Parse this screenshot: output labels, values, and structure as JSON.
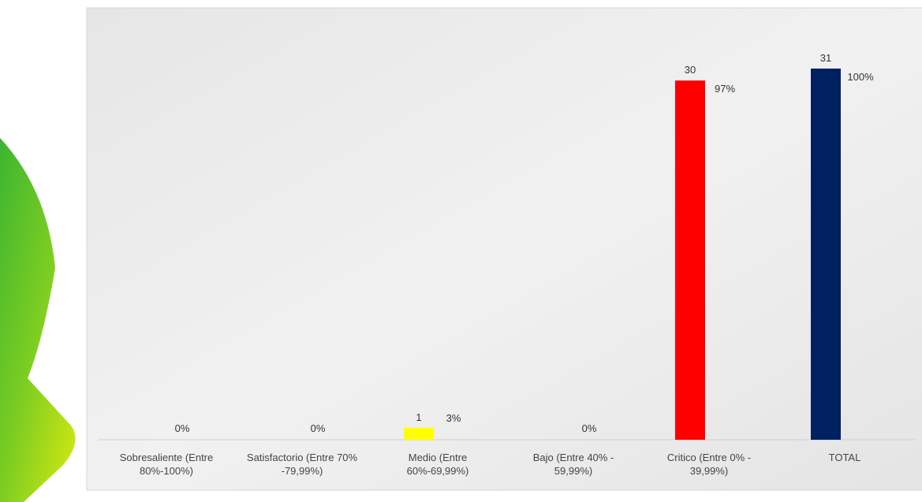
{
  "chart_data": {
    "type": "bar",
    "categories": [
      "Sobresaliente (Entre 80%-100%)",
      "Satisfactorio (Entre 70% -79,99%)",
      "Medio (Entre 60%-69,99%)",
      "Bajo (Entre 40% - 59,99%)",
      "Critico (Entre 0% - 39,99%)",
      "TOTAL"
    ],
    "values": [
      0,
      0,
      1,
      0,
      30,
      31
    ],
    "percent_labels": [
      "0%",
      "0%",
      "3%",
      "0%",
      "97%",
      "100%"
    ],
    "colors": [
      "#00b050",
      "#92d050",
      "#ffff00",
      "#ffc000",
      "#ff0000",
      "#002060"
    ]
  }
}
